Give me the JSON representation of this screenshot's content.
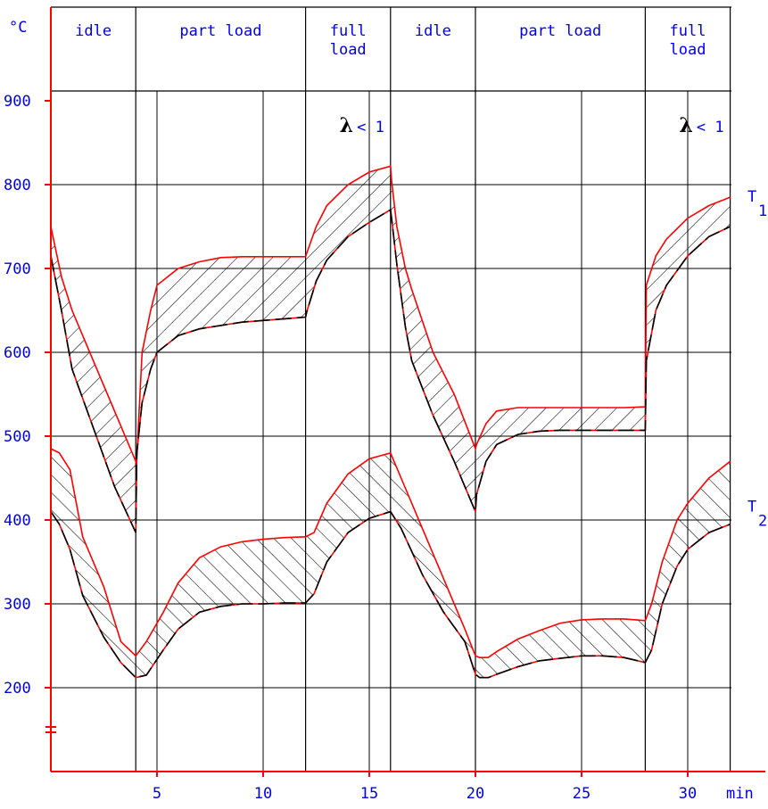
{
  "chart_data": {
    "type": "area",
    "ylabel": "°C",
    "xlabel": "min",
    "xlim": [
      0,
      32
    ],
    "ylim": [
      100,
      1000
    ],
    "x_ticks": [
      5,
      10,
      15,
      20,
      25,
      30
    ],
    "x_tick_labels": [
      "5",
      "10",
      "15",
      "20",
      "25",
      "30"
    ],
    "y_ticks": [
      200,
      300,
      400,
      500,
      600,
      700,
      800,
      900
    ],
    "y_tick_labels": [
      "200",
      "300",
      "400",
      "500",
      "600",
      "700",
      "800",
      "900"
    ],
    "axis_break_y": 150,
    "phases": [
      {
        "label": "idle",
        "start": 0,
        "end": 4
      },
      {
        "label": "part load",
        "start": 4,
        "end": 12
      },
      {
        "label": "full load",
        "start": 12,
        "end": 16
      },
      {
        "label": "idle",
        "start": 16,
        "end": 20
      },
      {
        "label": "part load",
        "start": 20,
        "end": 28
      },
      {
        "label": "full load",
        "start": 28,
        "end": 32
      }
    ],
    "annotations": [
      {
        "text": "λ < 1",
        "symbol": "λ",
        "rest": "< 1",
        "x": 13.6,
        "y": 863
      },
      {
        "text": "λ < 1",
        "symbol": "λ",
        "rest": "< 1",
        "x": 29.6,
        "y": 863
      }
    ],
    "series": [
      {
        "name": "T1",
        "name_main": "T",
        "name_sub": "1",
        "label_y": 780,
        "upper": {
          "x": [
            0,
            0.5,
            1,
            2,
            3,
            4,
            4.05,
            4.3,
            4.7,
            5,
            6,
            7,
            8,
            9,
            10,
            11,
            12,
            12.05,
            12.5,
            13,
            14,
            15,
            16,
            16.05,
            16.3,
            16.7,
            17,
            18,
            19,
            20,
            20.05,
            20.5,
            21,
            22,
            23,
            24,
            25,
            26,
            27,
            28,
            28.05,
            28.5,
            29,
            30,
            31,
            32
          ],
          "y": [
            750,
            690,
            650,
            590,
            530,
            470,
            475,
            600,
            650,
            680,
            700,
            708,
            713,
            714,
            714,
            714,
            714,
            718,
            750,
            775,
            800,
            815,
            822,
            805,
            750,
            700,
            675,
            600,
            550,
            485,
            490,
            515,
            530,
            534,
            534,
            534,
            534,
            534,
            534,
            535,
            680,
            715,
            735,
            760,
            775,
            785
          ]
        },
        "lower": {
          "x": [
            0,
            0.5,
            1,
            2,
            3,
            4,
            4.05,
            4.3,
            4.7,
            5,
            6,
            7,
            8,
            9,
            10,
            11,
            12,
            12.05,
            12.5,
            13,
            14,
            15,
            16,
            16.05,
            16.3,
            16.7,
            17,
            18,
            19,
            20,
            20.05,
            20.5,
            21,
            22,
            23,
            24,
            25,
            26,
            27,
            28,
            28.05,
            28.5,
            29,
            30,
            31,
            32
          ],
          "y": [
            715,
            650,
            580,
            510,
            440,
            385,
            480,
            540,
            580,
            600,
            620,
            628,
            632,
            636,
            638,
            640,
            642,
            648,
            685,
            710,
            738,
            755,
            770,
            760,
            705,
            630,
            590,
            525,
            470,
            410,
            430,
            470,
            490,
            502,
            506,
            507,
            507,
            507,
            507,
            507,
            590,
            650,
            680,
            715,
            738,
            750
          ]
        }
      },
      {
        "name": "T2",
        "name_main": "T",
        "name_sub": "2",
        "label_y": 410,
        "upper": {
          "x": [
            0,
            0.4,
            0.9,
            1.5,
            2.5,
            3.3,
            4,
            4.5,
            5.3,
            6,
            7,
            8,
            9,
            10,
            11,
            12,
            12.4,
            13,
            14,
            15,
            16,
            16.5,
            17.5,
            18.5,
            19.5,
            20,
            20.2,
            20.6,
            21,
            22,
            23,
            24,
            25,
            26,
            27,
            28,
            28.3,
            28.8,
            29.5,
            30,
            31,
            32
          ],
          "y": [
            485,
            480,
            460,
            380,
            320,
            255,
            238,
            255,
            290,
            325,
            355,
            368,
            374,
            377,
            379,
            380,
            385,
            420,
            455,
            473,
            480,
            450,
            390,
            330,
            270,
            238,
            236,
            236,
            243,
            258,
            268,
            277,
            281,
            282,
            282,
            280,
            300,
            350,
            400,
            420,
            450,
            470
          ]
        },
        "lower": {
          "x": [
            0,
            0.4,
            0.9,
            1.5,
            2.5,
            3.3,
            4,
            4.5,
            5.3,
            6,
            7,
            8,
            9,
            10,
            11,
            12,
            12.4,
            13,
            14,
            15,
            16,
            16.5,
            17.5,
            18.5,
            19.5,
            20,
            20.2,
            20.6,
            21,
            22,
            23,
            24,
            25,
            26,
            27,
            28,
            28.3,
            28.8,
            29.5,
            30,
            31,
            32
          ],
          "y": [
            410,
            395,
            365,
            310,
            260,
            230,
            212,
            215,
            245,
            270,
            290,
            297,
            300,
            300,
            301,
            301,
            312,
            350,
            385,
            402,
            410,
            390,
            335,
            290,
            255,
            216,
            212,
            212,
            216,
            225,
            232,
            235,
            238,
            238,
            236,
            230,
            245,
            300,
            345,
            365,
            385,
            395
          ]
        }
      }
    ],
    "colors": {
      "axis": "#ff0000",
      "grid": "#000000",
      "curve": "#ff0000",
      "dashed": "#000000",
      "text": "#0000ee"
    }
  }
}
